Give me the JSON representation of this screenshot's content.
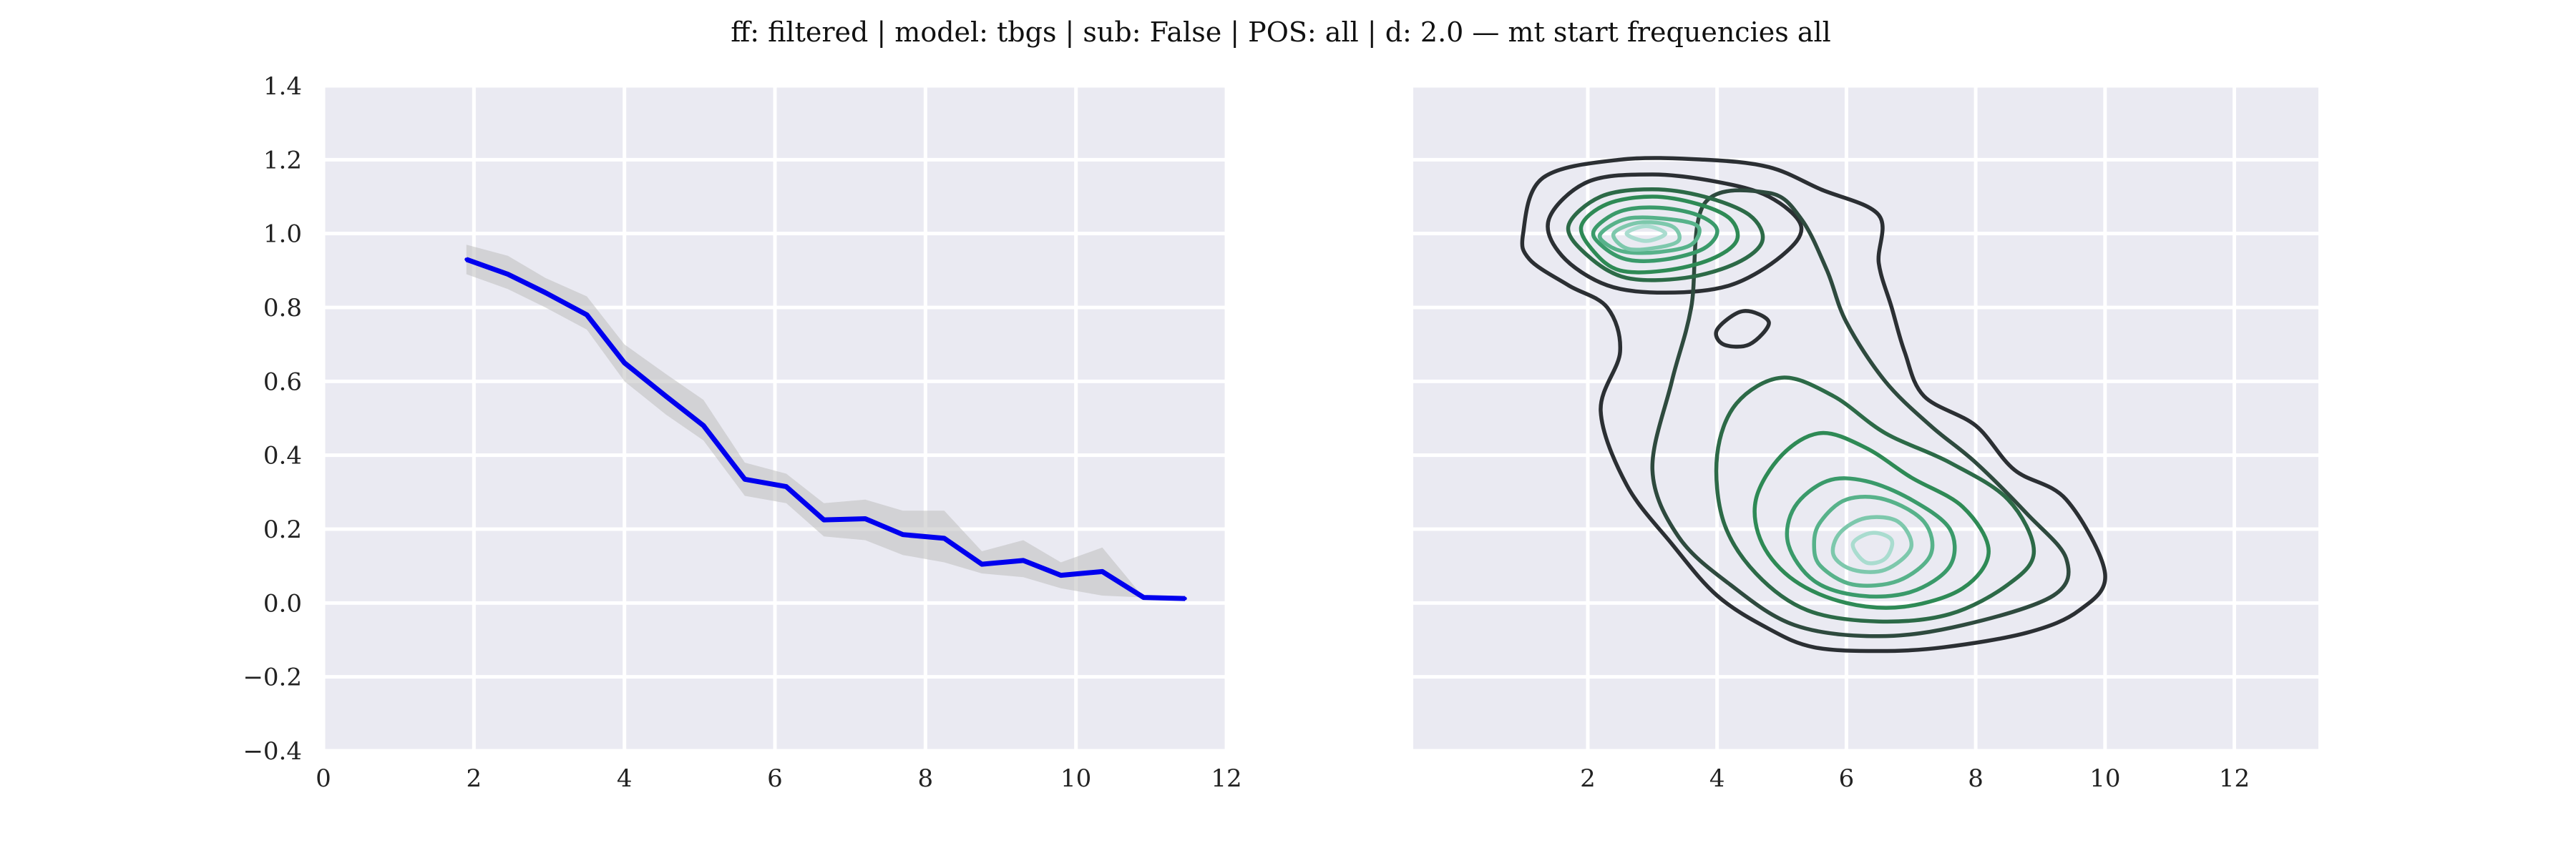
{
  "figure": {
    "title": "ff: filtered | model: tbgs | sub: False | POS: all | d: 2.0 — mt start frequencies all"
  },
  "colors": {
    "background": "#ffffff",
    "axes_face": "#eaeaf2",
    "grid": "#ffffff",
    "line": "#0000ee",
    "band": "#bdbdbd",
    "contour_dark": "#2b2f33",
    "contour_mid": "#2e8a55",
    "contour_light": "#a9dccf"
  },
  "chart_data": [
    {
      "type": "line",
      "title": "",
      "xlabel": "",
      "ylabel": "",
      "xlim": [
        0,
        12
      ],
      "ylim": [
        -0.4,
        1.4
      ],
      "grid": true,
      "xticks": [
        0,
        2,
        4,
        6,
        8,
        10,
        12
      ],
      "xtick_labels": [
        "0",
        "2",
        "4",
        "6",
        "8",
        "10",
        "12"
      ],
      "yticks": [
        -0.4,
        -0.2,
        0.0,
        0.2,
        0.4,
        0.6,
        0.8,
        1.0,
        1.2,
        1.4
      ],
      "ytick_labels": [
        "−0.4",
        "−0.2",
        "0.0",
        "0.2",
        "0.4",
        "0.6",
        "0.8",
        "1.0",
        "1.2",
        "1.4"
      ],
      "series": [
        {
          "x": [
            1.9,
            2.45,
            2.95,
            3.5,
            4.0,
            4.55,
            5.05,
            5.6,
            6.15,
            6.65,
            7.2,
            7.7,
            8.25,
            8.75,
            9.3,
            9.8,
            10.35,
            10.9,
            11.45
          ],
          "y": [
            0.93,
            0.89,
            0.84,
            0.78,
            0.65,
            0.56,
            0.48,
            0.335,
            0.315,
            0.225,
            0.228,
            0.185,
            0.175,
            0.105,
            0.115,
            0.075,
            0.085,
            0.015,
            0.012
          ],
          "band_upper": [
            0.97,
            0.94,
            0.88,
            0.83,
            0.7,
            0.62,
            0.55,
            0.38,
            0.35,
            0.27,
            0.28,
            0.25,
            0.25,
            0.14,
            0.17,
            0.11,
            0.15,
            0.015,
            0.012
          ],
          "band_lower": [
            0.89,
            0.85,
            0.8,
            0.74,
            0.6,
            0.51,
            0.44,
            0.29,
            0.27,
            0.18,
            0.17,
            0.13,
            0.11,
            0.08,
            0.07,
            0.04,
            0.02,
            0.015,
            0.012
          ]
        }
      ]
    },
    {
      "type": "contour",
      "title": "",
      "xlabel": "",
      "ylabel": "",
      "xlim": [
        -0.7,
        13.3
      ],
      "ylim": [
        -0.4,
        1.4
      ],
      "grid": true,
      "xticks": [
        2,
        4,
        6,
        8,
        10,
        12
      ],
      "xtick_labels": [
        "2",
        "4",
        "6",
        "8",
        "10",
        "12"
      ],
      "peaks": [
        {
          "x": 2.6,
          "y": 1.0
        },
        {
          "x": 6.5,
          "y": 0.12
        }
      ],
      "contours": [
        {
          "level": 1,
          "color": "#2b2f33",
          "points": [
            [
              1.0,
              1.0
            ],
            [
              1.3,
              1.15
            ],
            [
              2.5,
              1.2
            ],
            [
              3.8,
              1.2
            ],
            [
              4.8,
              1.18
            ],
            [
              5.6,
              1.12
            ],
            [
              6.5,
              1.05
            ],
            [
              6.5,
              0.92
            ],
            [
              6.7,
              0.8
            ],
            [
              6.9,
              0.68
            ],
            [
              7.2,
              0.56
            ],
            [
              8.0,
              0.48
            ],
            [
              8.6,
              0.36
            ],
            [
              9.4,
              0.28
            ],
            [
              10.0,
              0.08
            ],
            [
              9.6,
              -0.02
            ],
            [
              8.8,
              -0.08
            ],
            [
              7.5,
              -0.12
            ],
            [
              6.5,
              -0.13
            ],
            [
              5.5,
              -0.12
            ],
            [
              4.8,
              -0.07
            ],
            [
              4.0,
              0.02
            ],
            [
              3.3,
              0.16
            ],
            [
              2.6,
              0.32
            ],
            [
              2.2,
              0.52
            ],
            [
              2.5,
              0.68
            ],
            [
              2.3,
              0.8
            ],
            [
              1.7,
              0.86
            ],
            [
              1.1,
              0.93
            ]
          ]
        },
        {
          "level": 2,
          "color": "#2b2f33",
          "points": [
            [
              4.0,
              0.74
            ],
            [
              4.4,
              0.79
            ],
            [
              4.8,
              0.76
            ],
            [
              4.5,
              0.7
            ],
            [
              4.1,
              0.7
            ]
          ]
        },
        {
          "level": 3,
          "color": "#2b2f33",
          "points": [
            [
              1.4,
              1.04
            ],
            [
              2.0,
              1.14
            ],
            [
              3.0,
              1.16
            ],
            [
              4.0,
              1.14
            ],
            [
              4.8,
              1.1
            ],
            [
              5.3,
              1.02
            ],
            [
              5.0,
              0.94
            ],
            [
              4.2,
              0.86
            ],
            [
              3.2,
              0.84
            ],
            [
              2.3,
              0.86
            ],
            [
              1.6,
              0.94
            ]
          ]
        },
        {
          "level": 4,
          "color": "#2e4a3e",
          "points": [
            [
              3.6,
              0.8
            ],
            [
              3.3,
              0.6
            ],
            [
              3.0,
              0.36
            ],
            [
              3.4,
              0.18
            ],
            [
              4.2,
              0.05
            ],
            [
              5.2,
              -0.06
            ],
            [
              6.5,
              -0.09
            ],
            [
              7.8,
              -0.06
            ],
            [
              9.2,
              0.02
            ],
            [
              9.4,
              0.12
            ],
            [
              8.8,
              0.24
            ],
            [
              8.0,
              0.38
            ],
            [
              7.3,
              0.48
            ],
            [
              6.6,
              0.6
            ],
            [
              6.0,
              0.76
            ],
            [
              5.7,
              0.9
            ],
            [
              5.3,
              1.04
            ],
            [
              4.8,
              1.11
            ],
            [
              3.8,
              1.08
            ]
          ]
        },
        {
          "level": 5,
          "color": "#2c6a47",
          "points": [
            [
              1.7,
              1.02
            ],
            [
              2.2,
              1.1
            ],
            [
              3.0,
              1.12
            ],
            [
              3.8,
              1.1
            ],
            [
              4.5,
              1.05
            ],
            [
              4.7,
              0.98
            ],
            [
              4.3,
              0.92
            ],
            [
              3.5,
              0.88
            ],
            [
              2.6,
              0.88
            ],
            [
              2.0,
              0.94
            ]
          ]
        },
        {
          "level": 6,
          "color": "#2c6a47",
          "points": [
            [
              4.0,
              0.4
            ],
            [
              4.3,
              0.54
            ],
            [
              5.0,
              0.61
            ],
            [
              5.8,
              0.56
            ],
            [
              6.6,
              0.46
            ],
            [
              7.6,
              0.38
            ],
            [
              8.5,
              0.28
            ],
            [
              8.9,
              0.14
            ],
            [
              8.5,
              0.05
            ],
            [
              7.6,
              -0.03
            ],
            [
              6.5,
              -0.05
            ],
            [
              5.4,
              -0.02
            ],
            [
              4.6,
              0.08
            ],
            [
              4.1,
              0.22
            ]
          ]
        },
        {
          "level": 7,
          "color": "#2e8a55",
          "points": [
            [
              1.9,
              1.02
            ],
            [
              2.3,
              1.08
            ],
            [
              3.0,
              1.1
            ],
            [
              3.7,
              1.08
            ],
            [
              4.2,
              1.04
            ],
            [
              4.3,
              0.98
            ],
            [
              3.9,
              0.93
            ],
            [
              3.2,
              0.9
            ],
            [
              2.5,
              0.9
            ],
            [
              2.1,
              0.95
            ]
          ]
        },
        {
          "level": 8,
          "color": "#2e8a55",
          "points": [
            [
              4.6,
              0.28
            ],
            [
              5.0,
              0.4
            ],
            [
              5.6,
              0.46
            ],
            [
              6.3,
              0.42
            ],
            [
              7.0,
              0.34
            ],
            [
              7.8,
              0.26
            ],
            [
              8.2,
              0.14
            ],
            [
              7.8,
              0.04
            ],
            [
              6.9,
              -0.01
            ],
            [
              6.0,
              0.0
            ],
            [
              5.2,
              0.06
            ],
            [
              4.7,
              0.16
            ]
          ]
        },
        {
          "level": 9,
          "color": "#3a9a6a",
          "points": [
            [
              2.1,
              1.01
            ],
            [
              2.5,
              1.06
            ],
            [
              3.1,
              1.07
            ],
            [
              3.7,
              1.05
            ],
            [
              4.0,
              1.01
            ],
            [
              3.8,
              0.96
            ],
            [
              3.2,
              0.93
            ],
            [
              2.6,
              0.93
            ],
            [
              2.2,
              0.97
            ]
          ]
        },
        {
          "level": 10,
          "color": "#3a9a6a",
          "points": [
            [
              5.2,
              0.26
            ],
            [
              5.7,
              0.33
            ],
            [
              6.3,
              0.33
            ],
            [
              7.0,
              0.28
            ],
            [
              7.6,
              0.2
            ],
            [
              7.6,
              0.1
            ],
            [
              7.0,
              0.03
            ],
            [
              6.2,
              0.02
            ],
            [
              5.5,
              0.06
            ],
            [
              5.1,
              0.16
            ]
          ]
        },
        {
          "level": 11,
          "color": "#57b28a",
          "points": [
            [
              2.2,
              1.0
            ],
            [
              2.6,
              1.04
            ],
            [
              3.2,
              1.04
            ],
            [
              3.7,
              1.02
            ],
            [
              3.6,
              0.97
            ],
            [
              3.1,
              0.95
            ],
            [
              2.6,
              0.95
            ],
            [
              2.3,
              0.97
            ]
          ]
        },
        {
          "level": 12,
          "color": "#57b28a",
          "points": [
            [
              5.6,
              0.22
            ],
            [
              6.0,
              0.28
            ],
            [
              6.6,
              0.28
            ],
            [
              7.2,
              0.22
            ],
            [
              7.3,
              0.13
            ],
            [
              6.8,
              0.06
            ],
            [
              6.1,
              0.05
            ],
            [
              5.6,
              0.1
            ],
            [
              5.5,
              0.16
            ]
          ]
        },
        {
          "level": 13,
          "color": "#7dc8ac",
          "points": [
            [
              2.4,
              1.0
            ],
            [
              2.8,
              1.03
            ],
            [
              3.3,
              1.02
            ],
            [
              3.4,
              0.98
            ],
            [
              3.0,
              0.96
            ],
            [
              2.6,
              0.96
            ]
          ]
        },
        {
          "level": 14,
          "color": "#7dc8ac",
          "points": [
            [
              5.9,
              0.19
            ],
            [
              6.3,
              0.23
            ],
            [
              6.8,
              0.22
            ],
            [
              7.0,
              0.15
            ],
            [
              6.6,
              0.09
            ],
            [
              6.1,
              0.09
            ],
            [
              5.8,
              0.13
            ]
          ]
        },
        {
          "level": 15,
          "color": "#a9dccf",
          "points": [
            [
              2.6,
              1.0
            ],
            [
              2.9,
              1.02
            ],
            [
              3.2,
              1.0
            ],
            [
              2.9,
              0.98
            ]
          ]
        },
        {
          "level": 16,
          "color": "#a9dccf",
          "points": [
            [
              6.1,
              0.16
            ],
            [
              6.4,
              0.19
            ],
            [
              6.7,
              0.17
            ],
            [
              6.6,
              0.12
            ],
            [
              6.3,
              0.11
            ]
          ]
        }
      ]
    }
  ]
}
